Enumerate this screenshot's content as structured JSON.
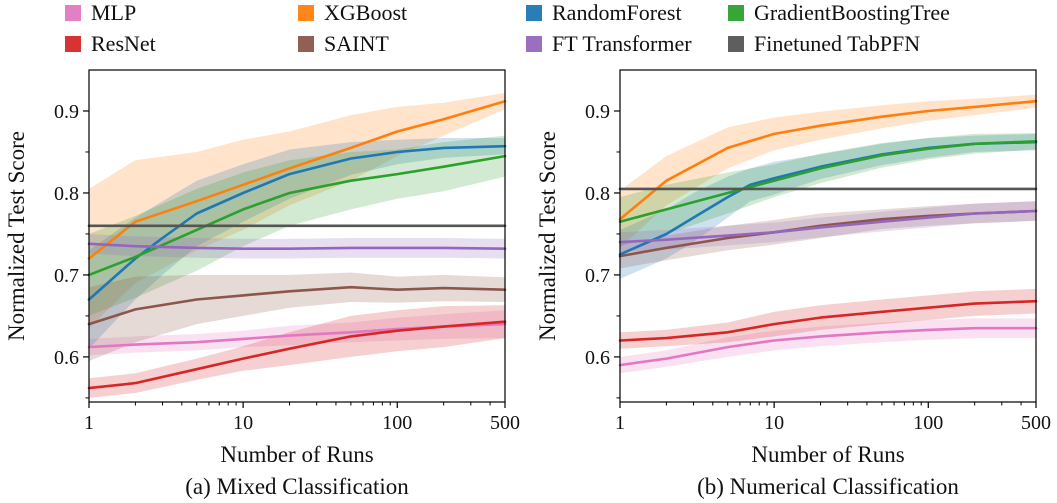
{
  "legend": [
    {
      "label": "MLP",
      "color": "#e377c2"
    },
    {
      "label": "XGBoost",
      "color": "#ff7f0e"
    },
    {
      "label": "RandomForest",
      "color": "#1f77b4"
    },
    {
      "label": "GradientBoostingTree",
      "color": "#2ca02c"
    },
    {
      "label": "ResNet",
      "color": "#d62728"
    },
    {
      "label": "SAINT",
      "color": "#8c564b"
    },
    {
      "label": "FT Transformer",
      "color": "#9467bd"
    },
    {
      "label": "Finetuned TabPFN",
      "color": "#555555"
    }
  ],
  "chart_data": [
    {
      "type": "line",
      "caption": "(a) Mixed Classification",
      "xlabel": "Number of Runs",
      "ylabel": "Normalized Test Score",
      "xscale": "log",
      "xlim": [
        1,
        500
      ],
      "ylim": [
        0.545,
        0.95
      ],
      "xticks": [
        1,
        10,
        100,
        500
      ],
      "xtick_labels": [
        "1",
        "10",
        "100",
        "500"
      ],
      "yticks": [
        0.6,
        0.7,
        0.8,
        0.9
      ],
      "ytick_labels": [
        "0.6",
        "0.7",
        "0.8",
        "0.9"
      ],
      "grid": false,
      "series": [
        {
          "name": "MLP",
          "x": [
            1,
            2,
            5,
            10,
            20,
            50,
            100,
            200,
            500
          ],
          "y": [
            0.612,
            0.615,
            0.618,
            0.622,
            0.626,
            0.63,
            0.634,
            0.637,
            0.64
          ],
          "band": [
            0.01,
            0.01,
            0.01,
            0.01,
            0.012,
            0.012,
            0.014,
            0.015,
            0.017
          ]
        },
        {
          "name": "XGBoost",
          "x": [
            1,
            2,
            5,
            10,
            20,
            50,
            100,
            200,
            500
          ],
          "y": [
            0.72,
            0.765,
            0.79,
            0.81,
            0.83,
            0.855,
            0.875,
            0.89,
            0.912
          ],
          "band": [
            0.085,
            0.075,
            0.06,
            0.055,
            0.045,
            0.04,
            0.03,
            0.02,
            0.01
          ]
        },
        {
          "name": "RandomForest",
          "x": [
            1,
            2,
            3,
            5,
            10,
            20,
            50,
            100,
            200,
            500
          ],
          "y": [
            0.67,
            0.72,
            0.745,
            0.775,
            0.8,
            0.823,
            0.842,
            0.85,
            0.855,
            0.857
          ],
          "band": [
            0.06,
            0.05,
            0.045,
            0.04,
            0.035,
            0.03,
            0.02,
            0.015,
            0.012,
            0.01
          ]
        },
        {
          "name": "GradientBoostingTree",
          "x": [
            1,
            2,
            5,
            10,
            20,
            50,
            100,
            200,
            500
          ],
          "y": [
            0.7,
            0.722,
            0.755,
            0.78,
            0.8,
            0.815,
            0.823,
            0.832,
            0.845
          ],
          "band": [
            0.05,
            0.05,
            0.05,
            0.045,
            0.04,
            0.035,
            0.03,
            0.03,
            0.025
          ]
        },
        {
          "name": "ResNet",
          "x": [
            1,
            2,
            5,
            10,
            20,
            50,
            100,
            200,
            500
          ],
          "y": [
            0.562,
            0.568,
            0.585,
            0.598,
            0.61,
            0.625,
            0.632,
            0.637,
            0.643
          ],
          "band": [
            0.012,
            0.012,
            0.013,
            0.015,
            0.02,
            0.025,
            0.025,
            0.025,
            0.02
          ]
        },
        {
          "name": "SAINT",
          "x": [
            1,
            2,
            5,
            10,
            20,
            50,
            100,
            200,
            500
          ],
          "y": [
            0.64,
            0.658,
            0.67,
            0.675,
            0.68,
            0.685,
            0.682,
            0.684,
            0.682
          ],
          "band": [
            0.045,
            0.04,
            0.03,
            0.025,
            0.02,
            0.018,
            0.016,
            0.016,
            0.015
          ]
        },
        {
          "name": "FT Transformer",
          "x": [
            1,
            2,
            5,
            10,
            20,
            50,
            100,
            200,
            500
          ],
          "y": [
            0.738,
            0.735,
            0.733,
            0.732,
            0.732,
            0.733,
            0.733,
            0.733,
            0.732
          ],
          "band": [
            0.012,
            0.012,
            0.012,
            0.012,
            0.012,
            0.012,
            0.012,
            0.012,
            0.012
          ]
        },
        {
          "name": "Finetuned TabPFN",
          "x": [
            1,
            500
          ],
          "y": [
            0.76,
            0.76
          ],
          "band": [
            0,
            0
          ]
        }
      ]
    },
    {
      "type": "line",
      "caption": "(b) Numerical Classification",
      "xlabel": "Number of Runs",
      "ylabel": "Normalized Test Score",
      "xscale": "log",
      "xlim": [
        1,
        500
      ],
      "ylim": [
        0.545,
        0.95
      ],
      "xticks": [
        1,
        10,
        100,
        500
      ],
      "xtick_labels": [
        "1",
        "10",
        "100",
        "500"
      ],
      "yticks": [
        0.6,
        0.7,
        0.8,
        0.9
      ],
      "ytick_labels": [
        "0.6",
        "0.7",
        "0.8",
        "0.9"
      ],
      "grid": false,
      "series": [
        {
          "name": "MLP",
          "x": [
            1,
            2,
            5,
            10,
            20,
            50,
            100,
            200,
            500
          ],
          "y": [
            0.59,
            0.598,
            0.612,
            0.62,
            0.625,
            0.63,
            0.633,
            0.635,
            0.635
          ],
          "band": [
            0.01,
            0.01,
            0.012,
            0.012,
            0.012,
            0.012,
            0.012,
            0.012,
            0.012
          ]
        },
        {
          "name": "XGBoost",
          "x": [
            1,
            2,
            5,
            10,
            20,
            50,
            100,
            200,
            500
          ],
          "y": [
            0.768,
            0.815,
            0.855,
            0.872,
            0.882,
            0.893,
            0.9,
            0.905,
            0.912
          ],
          "band": [
            0.035,
            0.03,
            0.025,
            0.02,
            0.017,
            0.014,
            0.012,
            0.01,
            0.008
          ]
        },
        {
          "name": "RandomForest",
          "x": [
            1,
            2,
            3,
            5,
            7,
            10,
            20,
            50,
            100,
            200,
            500
          ],
          "y": [
            0.725,
            0.75,
            0.77,
            0.795,
            0.81,
            0.818,
            0.832,
            0.847,
            0.855,
            0.86,
            0.862
          ],
          "band": [
            0.03,
            0.03,
            0.03,
            0.025,
            0.02,
            0.02,
            0.015,
            0.013,
            0.012,
            0.01,
            0.01
          ]
        },
        {
          "name": "GradientBoostingTree",
          "x": [
            1,
            2,
            5,
            10,
            20,
            50,
            100,
            200,
            500
          ],
          "y": [
            0.765,
            0.78,
            0.8,
            0.815,
            0.83,
            0.846,
            0.854,
            0.86,
            0.863
          ],
          "band": [
            0.03,
            0.03,
            0.025,
            0.02,
            0.018,
            0.015,
            0.013,
            0.012,
            0.01
          ]
        },
        {
          "name": "ResNet",
          "x": [
            1,
            2,
            5,
            10,
            20,
            50,
            100,
            200,
            500
          ],
          "y": [
            0.62,
            0.623,
            0.63,
            0.64,
            0.648,
            0.655,
            0.66,
            0.665,
            0.668
          ],
          "band": [
            0.01,
            0.01,
            0.012,
            0.015,
            0.015,
            0.015,
            0.015,
            0.015,
            0.015
          ]
        },
        {
          "name": "SAINT",
          "x": [
            1,
            2,
            5,
            10,
            20,
            50,
            100,
            200,
            500
          ],
          "y": [
            0.723,
            0.733,
            0.745,
            0.752,
            0.76,
            0.768,
            0.772,
            0.775,
            0.778
          ],
          "band": [
            0.015,
            0.015,
            0.015,
            0.015,
            0.015,
            0.012,
            0.012,
            0.012,
            0.012
          ]
        },
        {
          "name": "FT Transformer",
          "x": [
            1,
            2,
            5,
            10,
            20,
            50,
            100,
            200,
            500
          ],
          "y": [
            0.74,
            0.743,
            0.748,
            0.752,
            0.758,
            0.765,
            0.77,
            0.775,
            0.778
          ],
          "band": [
            0.012,
            0.012,
            0.012,
            0.012,
            0.012,
            0.012,
            0.012,
            0.012,
            0.012
          ]
        },
        {
          "name": "Finetuned TabPFN",
          "x": [
            1,
            500
          ],
          "y": [
            0.805,
            0.805
          ],
          "band": [
            0,
            0
          ]
        }
      ]
    }
  ]
}
